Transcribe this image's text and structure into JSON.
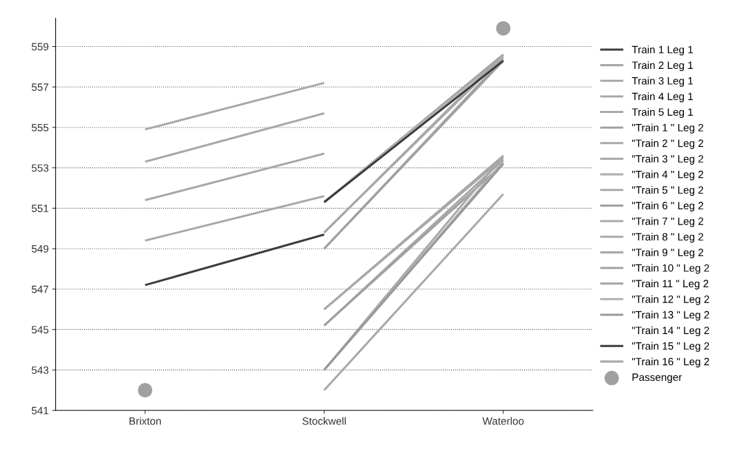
{
  "chart_data": {
    "type": "line",
    "categories": [
      "Brixton",
      "Stockwell",
      "Waterloo"
    ],
    "ylim": [
      541,
      560.4
    ],
    "yticks": [
      541,
      543,
      545,
      547,
      549,
      551,
      553,
      555,
      557,
      559
    ],
    "grid": "y",
    "legend": "right",
    "marker": "none",
    "line_style": "solid",
    "series": [
      {
        "name": "Train 1 Leg 1",
        "color": "#3c3c3c",
        "values": [
          547.2,
          549.7,
          null
        ]
      },
      {
        "name": "Train 2 Leg 1",
        "color": "#a8a8a8",
        "values": [
          549.4,
          551.6,
          null
        ]
      },
      {
        "name": "Train 3 Leg 1",
        "color": "#a8a8a8",
        "values": [
          551.4,
          553.7,
          null
        ]
      },
      {
        "name": "Train 4 Leg 1",
        "color": "#a8a8a8",
        "values": [
          553.3,
          555.7,
          null
        ]
      },
      {
        "name": "Train 5 Leg 1",
        "color": "#a8a8a8",
        "values": [
          554.9,
          557.2,
          null
        ]
      },
      {
        "name": "\"Train 1 \" Leg 2",
        "color": "#a0a0a0",
        "values": [
          null,
          551.3,
          558.6
        ]
      },
      {
        "name": "\"Train 2 \" Leg 2",
        "color": "#a8a8a8",
        "values": [
          null,
          549.8,
          558.5
        ]
      },
      {
        "name": "\"Train 3 \" Leg 2",
        "color": "#a8a8a8",
        "values": [
          null,
          549.0,
          558.4
        ]
      },
      {
        "name": "\"Train 4 \" Leg 2",
        "color": "#b0b0b0",
        "values": [
          null,
          551.3,
          558.5
        ]
      },
      {
        "name": "\"Train 5 \" Leg 2",
        "color": "#a8a8a8",
        "values": [
          null,
          549.8,
          558.6
        ]
      },
      {
        "name": "\"Train 6 \" Leg 2",
        "color": "#a0a0a0",
        "values": [
          null,
          549.0,
          558.3
        ]
      },
      {
        "name": "\"Train 7 \" Leg 2",
        "color": "#a8a8a8",
        "values": [
          null,
          546.0,
          553.6
        ]
      },
      {
        "name": "\"Train 8 \" Leg 2",
        "color": "#a8a8a8",
        "values": [
          null,
          545.2,
          553.4
        ]
      },
      {
        "name": "\"Train 9 \" Leg 2",
        "color": "#a8a8a8",
        "values": [
          null,
          546.0,
          553.5
        ]
      },
      {
        "name": "\"Train 10 \" Leg 2",
        "color": "#a0a0a0",
        "values": [
          null,
          545.2,
          553.2
        ]
      },
      {
        "name": "\"Train 11 \" Leg 2",
        "color": "#a8a8a8",
        "values": [
          null,
          543.0,
          553.6
        ]
      },
      {
        "name": "\"Train 12 \" Leg 2",
        "color": "#b0b0b0",
        "values": [
          null,
          543.0,
          553.3
        ]
      },
      {
        "name": "\"Train 13 \" Leg 2",
        "color": "#989898",
        "values": [
          null,
          543.0,
          553.2
        ]
      },
      {
        "name": "\"Train 14 \" Leg 2",
        "values": [
          null,
          null,
          null
        ]
      },
      {
        "name": "\"Train 15 \" Leg 2",
        "color": "#3c3c3c",
        "values": [
          null,
          551.3,
          558.3
        ]
      },
      {
        "name": "\"Train 16 \" Leg 2",
        "color": "#a8a8a8",
        "values": [
          null,
          542.0,
          551.7
        ]
      },
      {
        "name": "Passenger",
        "type": "scatter",
        "marker": "circle",
        "color": "#a0a0a0",
        "values": [
          542.0,
          null,
          559.9
        ]
      }
    ]
  }
}
